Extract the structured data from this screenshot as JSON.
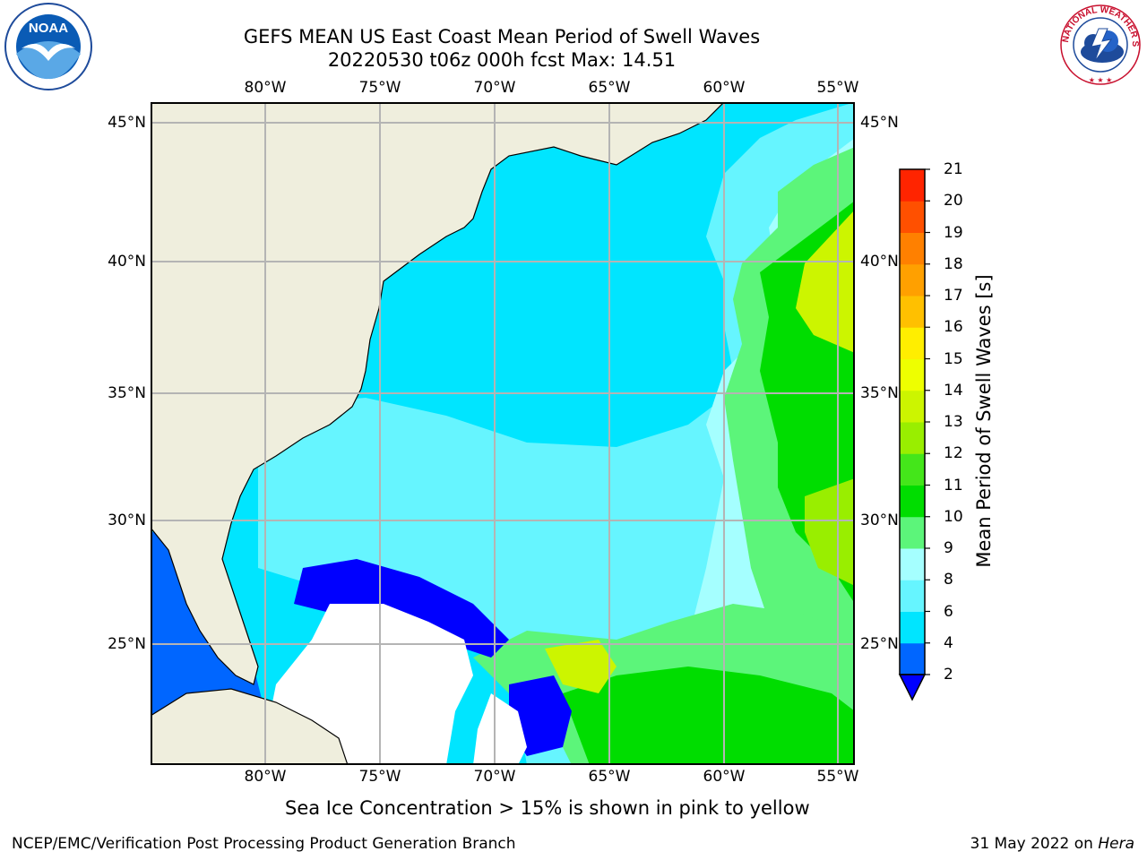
{
  "title": {
    "line1": "GEFS MEAN US East Coast Mean Period of Swell Waves",
    "line2": "20220530 t06z 000h fcst   Max: 14.51"
  },
  "map": {
    "longitude_labels": [
      "80°W",
      "75°W",
      "70°W",
      "65°W",
      "60°W",
      "55°W"
    ],
    "latitude_labels": [
      "45°N",
      "40°N",
      "35°N",
      "30°N",
      "25°N"
    ],
    "land_color": "#efeedd",
    "coastline_color": "#000000",
    "gridline_color": "#b4b4b4",
    "field": "Mean period of swell waves",
    "masked_color": "#ffffff"
  },
  "colorbar": {
    "label": "Mean Period of Swell Waves [s]",
    "ticks": [
      "2",
      "4",
      "6",
      "8",
      "9",
      "10",
      "11",
      "12",
      "13",
      "14",
      "15",
      "16",
      "17",
      "18",
      "19",
      "20",
      "21"
    ],
    "colors": [
      "#0000ff",
      "#0066ff",
      "#00e5ff",
      "#66f5ff",
      "#a5ffff",
      "#5cf57a",
      "#00dd00",
      "#44e61a",
      "#99ee00",
      "#ccf500",
      "#eeff00",
      "#ffee00",
      "#ffc000",
      "#ffa000",
      "#ff8000",
      "#ff5000",
      "#ff2400",
      "#ff0000"
    ],
    "extend_min_color": "#0000ff"
  },
  "annotation": "Sea Ice Concentration > 15% is shown in pink to yellow",
  "footer": {
    "left": "NCEP/EMC/Verification Post Processing Product Generation Branch",
    "date": "31 May 2022 on",
    "machine": "Hera"
  },
  "logos": {
    "noaa": "NOAA",
    "nws": "NATIONAL WEATHER SERVICE"
  }
}
